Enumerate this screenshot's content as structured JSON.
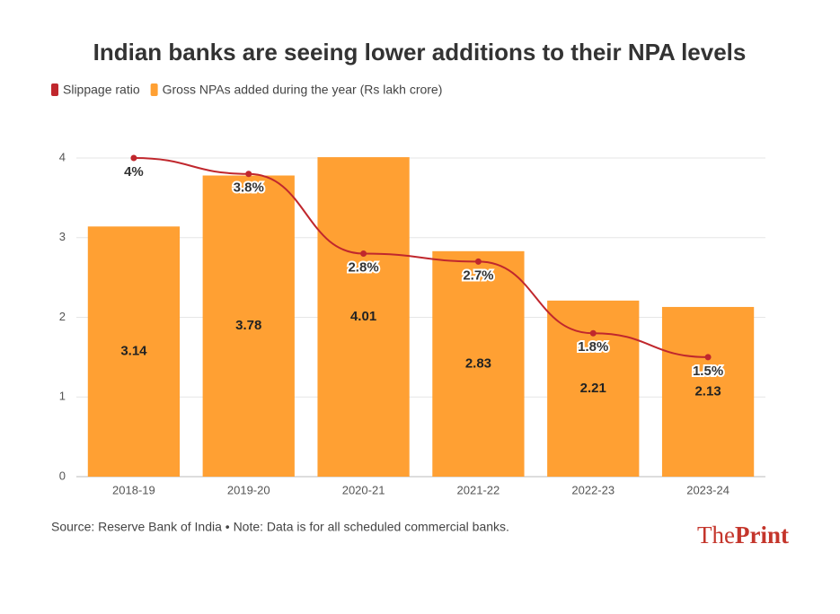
{
  "chart_data": {
    "type": "combo",
    "title": "Indian banks are seeing lower additions to their NPA levels",
    "source": "Source: Reserve Bank of India • Note: Data is for all scheduled commercial banks.",
    "logo": [
      "The",
      "Print"
    ],
    "categories": [
      "2018-19",
      "2019-20",
      "2020-21",
      "2021-22",
      "2022-23",
      "2023-24"
    ],
    "series": [
      {
        "name": "Slippage ratio",
        "type": "line",
        "color": "#c0272d",
        "values": [
          4,
          3.8,
          2.8,
          2.7,
          1.8,
          1.5
        ],
        "value_labels": [
          "4%",
          "3.8%",
          "2.8%",
          "2.7%",
          "1.8%",
          "1.5%"
        ]
      },
      {
        "name": "Gross NPAs added during the year (Rs lakh crore)",
        "type": "bar",
        "color": "#ffa033",
        "values": [
          3.14,
          3.78,
          4.01,
          2.83,
          2.21,
          2.13
        ]
      }
    ],
    "ylim": [
      0,
      4.5
    ],
    "yticks": [
      0,
      1,
      2,
      3,
      4
    ],
    "grid": true
  }
}
